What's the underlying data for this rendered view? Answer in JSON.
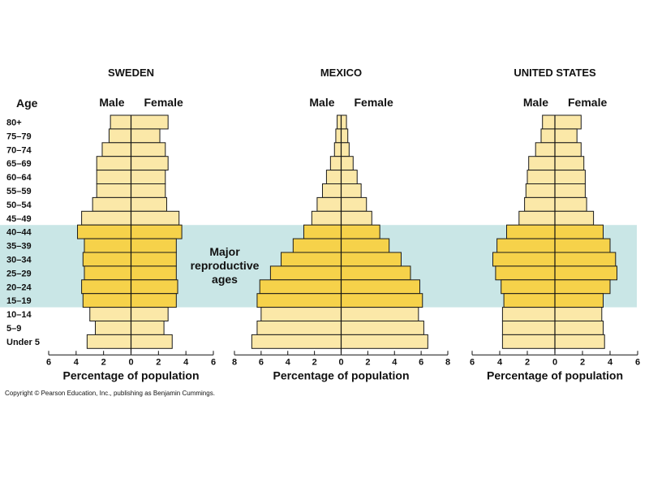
{
  "chart_data": {
    "type": "bar",
    "age_groups": [
      "80+",
      "75–79",
      "70–74",
      "65–69",
      "60–64",
      "55–59",
      "50–54",
      "45–49",
      "40–44",
      "35–39",
      "30–34",
      "25–29",
      "20–24",
      "15–19",
      "10–14",
      "5–9",
      "Under 5"
    ],
    "age_axis_label": "Age",
    "male_label": "Male",
    "female_label": "Female",
    "xlabel": "Percentage of population",
    "highlight": {
      "label_lines": [
        "Major",
        "reproductive",
        "ages"
      ],
      "from": "40–44",
      "to": "15–19",
      "color": "#c9e6e6"
    },
    "colors": {
      "light_bar": "#fbe8a8",
      "dark_bar": "#f6d24a",
      "bar_stroke": "#1a1a1a"
    },
    "charts": [
      {
        "title": "SWEDEN",
        "xlim": [
          -6,
          6
        ],
        "ticks": [
          "6",
          "4",
          "2",
          "0",
          "2",
          "4",
          "6"
        ],
        "male": [
          1.5,
          1.6,
          2.1,
          2.5,
          2.5,
          2.5,
          2.8,
          3.6,
          3.9,
          3.4,
          3.5,
          3.4,
          3.6,
          3.5,
          3.0,
          2.6,
          3.2
        ],
        "female": [
          2.7,
          2.1,
          2.5,
          2.7,
          2.5,
          2.5,
          2.6,
          3.5,
          3.7,
          3.3,
          3.3,
          3.3,
          3.4,
          3.3,
          2.7,
          2.4,
          3.0
        ]
      },
      {
        "title": "MEXICO",
        "xlim": [
          -8,
          8
        ],
        "ticks": [
          "8",
          "6",
          "4",
          "2",
          "0",
          "2",
          "4",
          "6",
          "8"
        ],
        "male": [
          0.3,
          0.4,
          0.5,
          0.8,
          1.1,
          1.4,
          1.8,
          2.2,
          2.8,
          3.6,
          4.5,
          5.3,
          6.1,
          6.3,
          6.0,
          6.3,
          6.7
        ],
        "female": [
          0.4,
          0.5,
          0.6,
          0.9,
          1.2,
          1.5,
          1.9,
          2.3,
          2.9,
          3.6,
          4.5,
          5.2,
          5.9,
          6.1,
          5.8,
          6.2,
          6.5
        ]
      },
      {
        "title": "UNITED STATES",
        "xlim": [
          -6,
          6
        ],
        "ticks": [
          "6",
          "4",
          "2",
          "0",
          "2",
          "4",
          "6"
        ],
        "male": [
          0.9,
          1.0,
          1.4,
          1.9,
          2.0,
          2.1,
          2.2,
          2.6,
          3.5,
          4.2,
          4.5,
          4.3,
          3.9,
          3.7,
          3.8,
          3.8,
          3.8
        ],
        "female": [
          1.9,
          1.6,
          1.9,
          2.1,
          2.2,
          2.2,
          2.3,
          2.8,
          3.5,
          4.0,
          4.4,
          4.5,
          4.0,
          3.5,
          3.4,
          3.5,
          3.6
        ]
      }
    ]
  },
  "footer": {
    "copyright": "Copyright © Pearson Education, Inc., publishing as Benjamin Cummings."
  }
}
